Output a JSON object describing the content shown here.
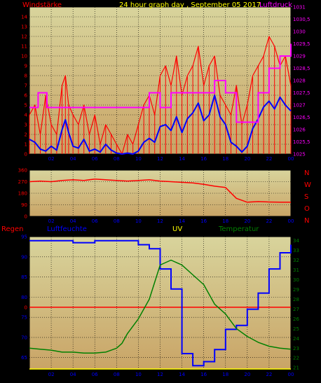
{
  "header": {
    "left_label": "Windstärke",
    "center_label": "24 hour graph day , September 05 2017",
    "right_label": "Luftdruck"
  },
  "compass": [
    "N",
    "W",
    "S",
    "O",
    "N"
  ],
  "bottom_header": {
    "regen": "Regen",
    "luftfeuchte": "Luftfeuchte",
    "uv": "UV",
    "temperatur": "Temperatur"
  },
  "colors": {
    "panel_top": "#d8d49c",
    "panel_bottom": "#c9a466",
    "frame": "#000000",
    "wind_gust": "#ff0000",
    "wind_avg": "#0000ff",
    "pressure": "#ff00ff",
    "direction": "#ff0000",
    "humidity": "#0000ff",
    "temperature": "#008000",
    "rain": "#ff0000",
    "uv": "#ffff00"
  },
  "chart_data": [
    {
      "type": "line",
      "name": "wind-pressure",
      "x_ticks": [
        "02",
        "04",
        "06",
        "08",
        "10",
        "12",
        "14",
        "16",
        "18",
        "20",
        "22",
        "00"
      ],
      "y_left_ticks": [
        "0",
        "1",
        "2",
        "3",
        "4",
        "5",
        "6",
        "7",
        "8",
        "9",
        "10",
        "11",
        "12",
        "13",
        "14"
      ],
      "y_right_ticks": [
        "1025",
        "1025,5",
        "1026",
        "1026,5",
        "1027",
        "1027,5",
        "1028",
        "1028,5",
        "1029",
        "1029,5",
        "1030",
        "1030,5",
        "1031"
      ],
      "ylim_left": [
        0,
        15
      ],
      "ylim_right": [
        1025,
        1031
      ],
      "xlim": [
        0,
        24
      ],
      "series": [
        {
          "key": "gust",
          "axis": "left",
          "color": "#ff0000",
          "x": [
            0,
            0.5,
            1,
            1.5,
            2,
            2.5,
            3,
            3.3,
            3.6,
            4,
            4.5,
            5,
            5.5,
            6,
            6.5,
            7,
            7.5,
            8,
            8.5,
            9,
            9.5,
            10,
            10.5,
            11,
            11.5,
            12,
            12.5,
            13,
            13.5,
            14,
            14.5,
            15,
            15.5,
            16,
            16.5,
            17,
            17.5,
            18,
            18.5,
            19,
            19.5,
            20,
            20.5,
            21,
            21.5,
            22,
            22.5,
            23,
            23.5,
            24
          ],
          "y": [
            4,
            5,
            2,
            6,
            3,
            2,
            7,
            8,
            5,
            4,
            3,
            5,
            2,
            4,
            1,
            3,
            2,
            1,
            0,
            2,
            1,
            3,
            5,
            6,
            4,
            8,
            9,
            7,
            10,
            6,
            8,
            9,
            11,
            7,
            9,
            10,
            6,
            5,
            4,
            7,
            3,
            5,
            8,
            9,
            10,
            12,
            11,
            9,
            10,
            7
          ]
        },
        {
          "key": "avg",
          "axis": "left",
          "color": "#0000ff",
          "x": [
            0,
            0.5,
            1,
            1.5,
            2,
            2.5,
            3,
            3.3,
            3.6,
            4,
            4.5,
            5,
            5.5,
            6,
            6.5,
            7,
            7.5,
            8,
            8.5,
            9,
            9.5,
            10,
            10.5,
            11,
            11.5,
            12,
            12.5,
            13,
            13.5,
            14,
            14.5,
            15,
            15.5,
            16,
            16.5,
            17,
            17.5,
            18,
            18.5,
            19,
            19.5,
            20,
            20.5,
            21,
            21.5,
            22,
            22.5,
            23,
            23.5,
            24
          ],
          "y": [
            1.5,
            1.2,
            0.5,
            0.3,
            0.8,
            0.4,
            2.5,
            3.5,
            2.2,
            0.8,
            0.6,
            1.5,
            0.3,
            0.5,
            0.2,
            1,
            0.4,
            0.1,
            0,
            0.1,
            0,
            0.3,
            1.2,
            1.6,
            1.2,
            2.8,
            3,
            2.4,
            3.8,
            2.2,
            3.6,
            4.2,
            5.2,
            3.4,
            4,
            6,
            3.8,
            3,
            1.2,
            0.8,
            0.2,
            0.8,
            2.6,
            3.6,
            4.8,
            5.4,
            4.6,
            5.8,
            5,
            4.4
          ]
        },
        {
          "key": "pressure",
          "axis": "right",
          "color": "#ff00ff",
          "x": [
            0,
            0.5,
            0.8,
            1.1,
            1.6,
            2,
            3.2,
            4.5,
            6,
            7.2,
            8,
            9,
            10,
            11,
            12,
            13,
            14,
            15,
            16,
            17,
            18,
            19,
            20,
            21,
            22,
            23,
            24
          ],
          "y": [
            1026.9,
            1026.9,
            1027.5,
            1027.5,
            1026.9,
            1026.9,
            1026.9,
            1026.9,
            1026.9,
            1026.9,
            1026.9,
            1026.9,
            1026.9,
            1027.5,
            1026.9,
            1027.5,
            1027.5,
            1027.5,
            1027.5,
            1028.0,
            1027.5,
            1026.3,
            1026.3,
            1027.5,
            1028.5,
            1029.0,
            1029.5
          ]
        }
      ]
    },
    {
      "type": "line",
      "name": "wind-direction",
      "x_ticks": [
        "02",
        "04",
        "06",
        "08",
        "10",
        "12",
        "14",
        "16",
        "18",
        "20",
        "22",
        "00"
      ],
      "y_ticks": [
        "0",
        "90",
        "180",
        "270",
        "360"
      ],
      "ylim": [
        0,
        360
      ],
      "xlim": [
        0,
        24
      ],
      "series": [
        {
          "key": "direction",
          "color": "#ff0000",
          "x": [
            0,
            1,
            2,
            3,
            4,
            5,
            6,
            7,
            8,
            9,
            10,
            11,
            12,
            13,
            14,
            15,
            16,
            17,
            18,
            19,
            20,
            21,
            22,
            23,
            24
          ],
          "y": [
            270,
            275,
            270,
            280,
            285,
            280,
            290,
            285,
            280,
            275,
            280,
            285,
            275,
            270,
            265,
            260,
            250,
            235,
            225,
            140,
            110,
            115,
            112,
            110,
            110
          ]
        }
      ]
    },
    {
      "type": "line",
      "name": "humidity-temperature",
      "x_ticks": [
        "02",
        "04",
        "06",
        "08",
        "10",
        "12",
        "14",
        "16",
        "18",
        "20",
        "22",
        "00"
      ],
      "y_left_ticks": [
        "65",
        "70",
        "75",
        "80",
        "85",
        "90",
        "95"
      ],
      "y_right_ticks": [
        "21",
        "22",
        "23",
        "24",
        "25",
        "26",
        "27",
        "28",
        "29",
        "30",
        "31",
        "32",
        "33",
        "34"
      ],
      "ylim_left": [
        62,
        95
      ],
      "ylim_right": [
        20.8,
        34.4
      ],
      "xlim": [
        0,
        24
      ],
      "rain_value": 0,
      "series": [
        {
          "key": "humidity",
          "axis": "left",
          "color": "#0000ff",
          "x": [
            0,
            2,
            4,
            6,
            8,
            10,
            11,
            12,
            13,
            14,
            15,
            16,
            17,
            18,
            19,
            20,
            21,
            22,
            23,
            24
          ],
          "y": [
            94,
            94,
            93.5,
            94,
            94,
            93,
            92,
            87,
            82,
            66,
            63,
            64,
            67,
            72,
            73,
            77,
            81,
            87,
            91,
            93
          ]
        },
        {
          "key": "temperature",
          "axis": "right",
          "color": "#008000",
          "x": [
            0,
            1,
            2,
            3,
            4,
            5,
            6,
            7,
            8,
            8.5,
            9,
            10,
            11,
            12,
            13,
            14,
            15,
            16,
            17,
            18,
            19,
            20,
            21,
            22,
            23,
            24
          ],
          "y": [
            23,
            22.9,
            22.8,
            22.6,
            22.6,
            22.5,
            22.5,
            22.6,
            23,
            23.5,
            24.5,
            26,
            28,
            31.5,
            32,
            31.5,
            30.5,
            29.5,
            27.5,
            26.5,
            25,
            24.2,
            23.6,
            23.2,
            23,
            22.9
          ]
        }
      ]
    }
  ]
}
